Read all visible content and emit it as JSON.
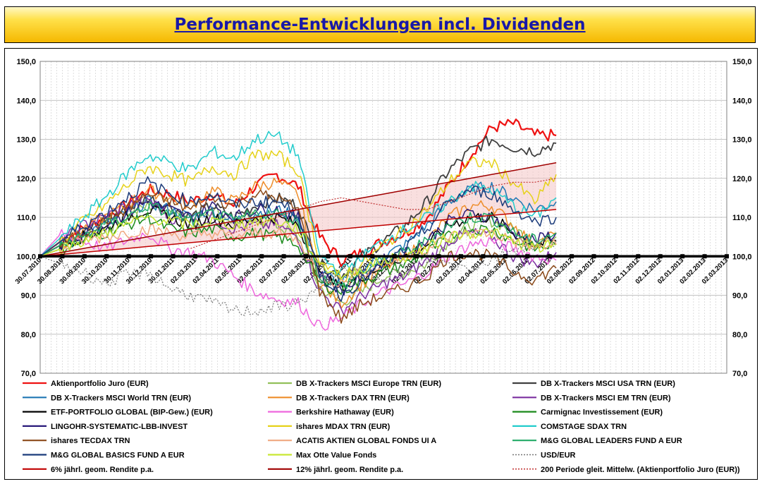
{
  "title": "Performance-Entwicklungen incl. Dividenden",
  "chart_data": {
    "type": "line",
    "ylim": [
      70,
      150
    ],
    "y_ticks": [
      "70,0",
      "80,0",
      "90,0",
      "100,0",
      "110,0",
      "120,0",
      "130,0",
      "140,0",
      "150,0"
    ],
    "x_tick_labels": [
      "30.07.2010",
      "30.08.2010",
      "30.09.2010",
      "30.10.2010",
      "30.11.2010",
      "30.12.2010",
      "30.01.2011",
      "02.03.2011",
      "02.04.2011",
      "02.05.2011",
      "02.06.2011",
      "02.07.2011",
      "02.08.2011",
      "02.09.2011",
      "02.10.2011",
      "02.11.2011",
      "02.12.2011",
      "02.01.2012",
      "02.02.2012",
      "02.03.2012",
      "02.04.2012",
      "02.05.2012",
      "02.06.2012",
      "02.07.2012",
      "02.08.2012",
      "02.09.2012",
      "02.10.2012",
      "02.11.2012",
      "02.12.2012",
      "02.01.2013",
      "02.02.2013",
      "02.03.2013"
    ],
    "grid": true,
    "secondary_y_axis": true,
    "reference_line": 100,
    "legend_position": "bottom",
    "series": [
      {
        "name": "Aktienportfolio Juro (EUR)",
        "color": "#ee1111",
        "width": 2.2,
        "style": "solid",
        "values": [
          100,
          104,
          107,
          110,
          113,
          117,
          116,
          114,
          116,
          113,
          118,
          121,
          118,
          105,
          99,
          101,
          104,
          106,
          110,
          118,
          126,
          133,
          134,
          131,
          131
        ]
      },
      {
        "name": "DB X-Trackers MSCI Europe TRN (EUR)",
        "color": "#92c05a",
        "width": 1.5,
        "style": "solid",
        "values": [
          100,
          102,
          105,
          107,
          110,
          113,
          112,
          110,
          112,
          109,
          110,
          108,
          105,
          92,
          88,
          91,
          95,
          96,
          98,
          104,
          108,
          109,
          107,
          104,
          105
        ]
      },
      {
        "name": "DB X-Trackers MSCI USA TRN (EUR)",
        "color": "#404040",
        "width": 1.8,
        "style": "solid",
        "values": [
          100,
          103,
          106,
          109,
          112,
          115,
          113,
          110,
          113,
          110,
          113,
          115,
          113,
          98,
          95,
          100,
          104,
          108,
          114,
          122,
          127,
          130,
          128,
          127,
          129
        ]
      },
      {
        "name": "DB X-Trackers MSCI World TRN (EUR)",
        "color": "#1f77b4",
        "width": 1.5,
        "style": "solid",
        "values": [
          100,
          103,
          106,
          108,
          111,
          114,
          112,
          110,
          112,
          109,
          111,
          112,
          110,
          96,
          93,
          97,
          100,
          103,
          108,
          114,
          117,
          118,
          115,
          112,
          114
        ]
      },
      {
        "name": "DB X-Trackers DAX TRN (EUR)",
        "color": "#ee8d2a",
        "width": 1.5,
        "style": "solid",
        "values": [
          100,
          103,
          107,
          110,
          113,
          117,
          115,
          113,
          117,
          114,
          118,
          119,
          116,
          93,
          88,
          93,
          97,
          100,
          104,
          110,
          113,
          113,
          108,
          103,
          106
        ]
      },
      {
        "name": "DB X-Trackers  MSCI EM TRN (EUR)",
        "color": "#7b2fa0",
        "width": 1.5,
        "style": "solid",
        "values": [
          100,
          104,
          108,
          110,
          113,
          115,
          110,
          108,
          110,
          107,
          108,
          108,
          105,
          91,
          86,
          90,
          93,
          95,
          99,
          104,
          106,
          105,
          100,
          98,
          101
        ]
      },
      {
        "name": "ETF-PORTFOLIO GLOBAL (BIP-Gew.) (EUR)",
        "color": "#000000",
        "width": 1.5,
        "style": "solid",
        "values": [
          100,
          103,
          105,
          107,
          110,
          112,
          110,
          108,
          110,
          108,
          110,
          110,
          108,
          95,
          92,
          95,
          98,
          100,
          103,
          108,
          110,
          110,
          106,
          103,
          104
        ]
      },
      {
        "name": "Berkshire Hathaway (EUR)",
        "color": "#ee66dd",
        "width": 1.5,
        "style": "solid",
        "values": [
          100,
          106,
          104,
          102,
          104,
          106,
          102,
          101,
          99,
          95,
          91,
          89,
          88,
          82,
          84,
          88,
          91,
          93,
          96,
          100,
          103,
          104,
          102,
          100,
          99
        ]
      },
      {
        "name": "Carmignac Investissement (EUR)",
        "color": "#1a8a1a",
        "width": 1.5,
        "style": "solid",
        "values": [
          100,
          102,
          104,
          106,
          108,
          110,
          107,
          106,
          107,
          105,
          106,
          105,
          103,
          93,
          91,
          94,
          96,
          98,
          101,
          105,
          107,
          107,
          104,
          102,
          103
        ]
      },
      {
        "name": "LINGOHR-SYSTEMATIC-LBB-INVEST",
        "color": "#2a1a7a",
        "width": 1.5,
        "style": "solid",
        "values": [
          100,
          103,
          106,
          108,
          111,
          114,
          112,
          110,
          113,
          110,
          112,
          112,
          110,
          96,
          91,
          95,
          99,
          101,
          104,
          109,
          111,
          110,
          106,
          104,
          106
        ]
      },
      {
        "name": "ishares MDAX TRN (EUR)",
        "color": "#e6d21a",
        "width": 1.5,
        "style": "solid",
        "values": [
          100,
          104,
          109,
          113,
          118,
          123,
          121,
          119,
          123,
          121,
          126,
          126,
          122,
          99,
          94,
          98,
          103,
          107,
          112,
          119,
          124,
          124,
          119,
          114,
          121
        ]
      },
      {
        "name": "COMSTAGE SDAX TRN",
        "color": "#22cccc",
        "width": 1.5,
        "style": "solid",
        "values": [
          100,
          105,
          110,
          115,
          121,
          126,
          124,
          122,
          127,
          125,
          130,
          131,
          126,
          100,
          96,
          100,
          104,
          107,
          110,
          114,
          118,
          117,
          113,
          110,
          115
        ]
      },
      {
        "name": "ishares TECDAX TRN",
        "color": "#8b4a1a",
        "width": 1.5,
        "style": "solid",
        "values": [
          100,
          103,
          106,
          109,
          112,
          116,
          114,
          112,
          115,
          113,
          116,
          115,
          112,
          91,
          84,
          88,
          90,
          92,
          95,
          100,
          101,
          100,
          96,
          94,
          97
        ]
      },
      {
        "name": "ACATIS AKTIEN GLOBAL FONDS UI A",
        "color": "#f0a880",
        "width": 1.5,
        "style": "solid",
        "values": [
          100,
          102,
          104,
          105,
          106,
          107,
          106,
          105,
          106,
          105,
          106,
          106,
          104,
          95,
          93,
          96,
          98,
          100,
          102,
          105,
          106,
          106,
          104,
          102,
          103
        ]
      },
      {
        "name": "M&G GLOBAL LEADERS FUND A EUR",
        "color": "#22aa66",
        "width": 1.5,
        "style": "solid",
        "values": [
          100,
          103,
          105,
          108,
          110,
          113,
          111,
          109,
          111,
          109,
          111,
          111,
          109,
          95,
          92,
          96,
          99,
          101,
          104,
          108,
          110,
          110,
          106,
          104,
          106
        ]
      },
      {
        "name": "M&G GLOBAL BASICS FUND A EUR",
        "color": "#1a3a7a",
        "width": 1.5,
        "style": "solid",
        "values": [
          100,
          104,
          108,
          111,
          115,
          119,
          116,
          114,
          116,
          113,
          114,
          114,
          111,
          95,
          90,
          94,
          98,
          102,
          107,
          114,
          117,
          116,
          112,
          109,
          110
        ]
      },
      {
        "name": "Max Otte Value Fonds",
        "color": "#c8e632",
        "width": 1.5,
        "style": "solid",
        "values": [
          100,
          102,
          104,
          106,
          108,
          110,
          109,
          108,
          109,
          108,
          109,
          109,
          107,
          98,
          95,
          97,
          99,
          100,
          102,
          105,
          106,
          106,
          104,
          102,
          103
        ]
      },
      {
        "name": "USD/EUR",
        "color": "#777777",
        "width": 1.2,
        "style": "dotted",
        "values": [
          100,
          98,
          96,
          93,
          95,
          96,
          92,
          90,
          88,
          86,
          86,
          87,
          88,
          92,
          96,
          96,
          95,
          97,
          99,
          98,
          97,
          99,
          102,
          103,
          104
        ]
      },
      {
        "name": "6% jährl. geom. Rendite p.a.",
        "color": "#c00000",
        "width": 1.5,
        "style": "solid",
        "values": [
          100,
          100.5,
          101,
          101.5,
          102,
          102.5,
          103,
          103.5,
          104,
          104.5,
          105,
          105.5,
          106,
          106.5,
          107,
          107.5,
          108,
          108.5,
          109,
          109.5,
          110,
          110.5,
          111,
          111.5,
          112
        ]
      },
      {
        "name": "12% jährl. geom. Rendite p.a.",
        "color": "#a00000",
        "width": 1.5,
        "style": "solid",
        "values": [
          100,
          101,
          102,
          103,
          104,
          105,
          106,
          107,
          108,
          109,
          110,
          111,
          112,
          113,
          114,
          115,
          116,
          117,
          118,
          119,
          120,
          121,
          122,
          123,
          124
        ]
      },
      {
        "name": "200 Periode gleit. Mittelw. (Aktienportfolio Juro (EUR))",
        "color": "#c03030",
        "width": 1.2,
        "style": "dotted",
        "values": [
          null,
          null,
          null,
          null,
          null,
          null,
          null,
          102,
          104,
          106,
          108,
          110,
          112,
          114,
          115,
          114,
          113,
          112,
          112,
          114,
          116,
          118,
          119,
          119,
          120
        ]
      }
    ]
  }
}
